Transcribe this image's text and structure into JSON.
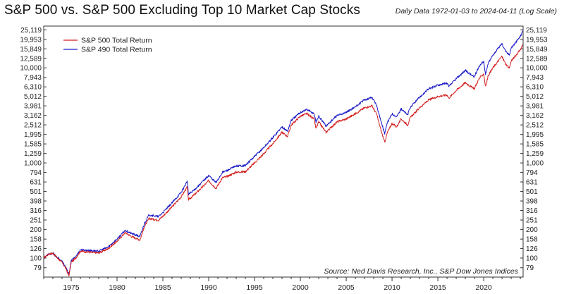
{
  "header": {
    "title": "S&P 500 vs. S&P 500 Excluding Top 10 Market Cap Stocks",
    "subtitle": "Daily Data 1972-01-03 to 2024-04-11 (Log Scale)"
  },
  "source_note": "Source:    Ned Davis Research, Inc., S&P Dow Jones Indices",
  "chart_data": {
    "type": "line",
    "y_scale": "log",
    "xlim": [
      1972.0,
      2024.3
    ],
    "ylim": [
      63,
      27500
    ],
    "grid": false,
    "legend_position": "top-left",
    "x_ticks": [
      1975,
      1980,
      1985,
      1990,
      1995,
      2000,
      2005,
      2010,
      2015,
      2020
    ],
    "x_tick_labels": [
      "1975",
      "1980",
      "1985",
      "1990",
      "1995",
      "2000",
      "2005",
      "2010",
      "2015",
      "2020"
    ],
    "y_ticks": [
      79,
      100,
      126,
      158,
      200,
      251,
      316,
      398,
      501,
      631,
      794,
      1000,
      1259,
      1585,
      1995,
      2512,
      3162,
      3981,
      5012,
      6310,
      7943,
      10000,
      12589,
      15849,
      19953,
      25119
    ],
    "y_tick_labels": [
      "79",
      "100",
      "126",
      "158",
      "200",
      "251",
      "316",
      "398",
      "501",
      "631",
      "794",
      "1,000",
      "1,259",
      "1,585",
      "1,995",
      "2,512",
      "3,162",
      "3,981",
      "5,012",
      "6,310",
      "7,943",
      "10,000",
      "12,589",
      "15,849",
      "19,953",
      "25,119"
    ],
    "series": [
      {
        "name": "S&P 500 Total Return",
        "color": "#d42020",
        "x": [
          1972.0,
          1972.5,
          1973.0,
          1973.5,
          1974.0,
          1974.4,
          1974.75,
          1975.0,
          1975.5,
          1976.0,
          1977.0,
          1978.0,
          1979.0,
          1980.0,
          1980.9,
          1981.5,
          1982.5,
          1983.0,
          1983.5,
          1984.5,
          1985.0,
          1986.0,
          1987.0,
          1987.65,
          1987.8,
          1988.5,
          1989.5,
          1990.0,
          1990.8,
          1991.5,
          1992.0,
          1993.0,
          1994.0,
          1995.0,
          1996.0,
          1997.0,
          1998.0,
          1998.6,
          1999.0,
          2000.0,
          2000.7,
          2001.5,
          2001.7,
          2002.0,
          2002.8,
          2003.0,
          2004.0,
          2005.0,
          2006.0,
          2007.0,
          2007.8,
          2008.3,
          2008.8,
          2009.2,
          2009.5,
          2010.0,
          2010.5,
          2011.0,
          2011.7,
          2012.0,
          2013.0,
          2014.0,
          2015.0,
          2016.0,
          2016.2,
          2017.0,
          2018.0,
          2018.95,
          2019.5,
          2020.0,
          2020.2,
          2020.5,
          2021.0,
          2021.98,
          2022.5,
          2022.8,
          2023.0,
          2023.5,
          2024.0,
          2024.28
        ],
        "y": [
          100,
          110,
          112,
          100,
          90,
          78,
          65,
          90,
          100,
          118,
          115,
          113,
          125,
          150,
          185,
          170,
          155,
          215,
          260,
          250,
          275,
          345,
          440,
          560,
          410,
          470,
          580,
          650,
          540,
          700,
          720,
          800,
          810,
          1000,
          1250,
          1600,
          2100,
          1900,
          2500,
          3100,
          3300,
          2900,
          2300,
          2700,
          2100,
          2200,
          2700,
          2900,
          3300,
          3800,
          4000,
          3300,
          2200,
          1650,
          2100,
          2600,
          2400,
          2900,
          2500,
          3000,
          3800,
          4600,
          5000,
          5200,
          4800,
          5800,
          7000,
          6000,
          7700,
          8700,
          6300,
          8300,
          10000,
          13200,
          10500,
          10000,
          11800,
          13500,
          15500,
          17500
        ]
      },
      {
        "name": "S&P 490 Total Return",
        "color": "#1a1ac8",
        "x": [
          1972.0,
          1972.5,
          1973.0,
          1973.5,
          1974.0,
          1974.4,
          1974.75,
          1975.0,
          1975.5,
          1976.0,
          1977.0,
          1978.0,
          1979.0,
          1980.0,
          1980.9,
          1981.5,
          1982.5,
          1983.0,
          1983.5,
          1984.5,
          1985.0,
          1986.0,
          1987.0,
          1987.65,
          1987.8,
          1988.5,
          1989.5,
          1990.0,
          1990.8,
          1991.5,
          1992.0,
          1993.0,
          1994.0,
          1995.0,
          1996.0,
          1997.0,
          1998.0,
          1998.6,
          1999.0,
          2000.0,
          2000.7,
          2001.5,
          2001.7,
          2002.0,
          2002.8,
          2003.0,
          2004.0,
          2005.0,
          2006.0,
          2007.0,
          2007.8,
          2008.3,
          2008.8,
          2009.2,
          2009.5,
          2010.0,
          2010.5,
          2011.0,
          2011.7,
          2012.0,
          2013.0,
          2014.0,
          2015.0,
          2016.0,
          2016.2,
          2017.0,
          2018.0,
          2018.95,
          2019.5,
          2020.0,
          2020.2,
          2020.5,
          2021.0,
          2021.98,
          2022.5,
          2022.8,
          2023.0,
          2023.5,
          2024.0,
          2024.28
        ],
        "y": [
          100,
          110,
          112,
          101,
          92,
          80,
          67,
          93,
          104,
          122,
          120,
          118,
          130,
          158,
          196,
          182,
          168,
          232,
          285,
          272,
          300,
          380,
          490,
          640,
          465,
          530,
          660,
          740,
          620,
          800,
          830,
          930,
          940,
          1170,
          1450,
          1850,
          2400,
          2150,
          2800,
          3400,
          3650,
          3300,
          2700,
          3100,
          2450,
          2550,
          3150,
          3400,
          3900,
          4600,
          4900,
          4100,
          2750,
          2050,
          2650,
          3300,
          3050,
          3700,
          3200,
          3850,
          4900,
          6000,
          6600,
          6900,
          6350,
          7700,
          9400,
          8000,
          10400,
          11800,
          8500,
          11200,
          13600,
          18000,
          14400,
          13800,
          16200,
          18500,
          21500,
          24600
        ]
      }
    ]
  }
}
